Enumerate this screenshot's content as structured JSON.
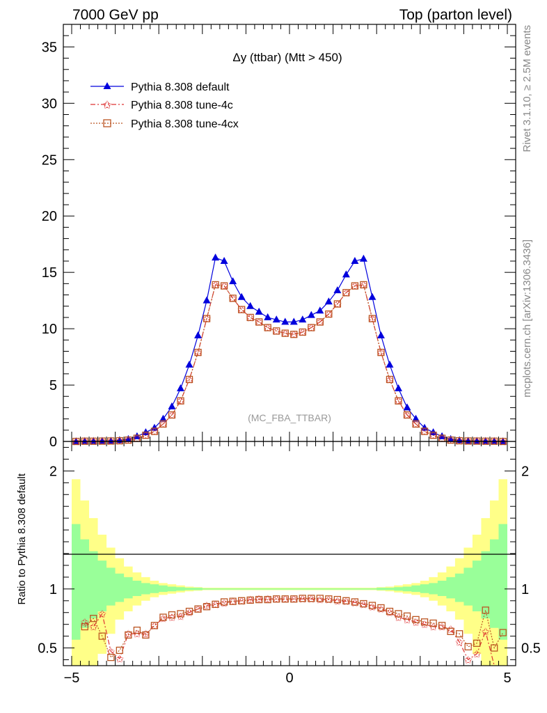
{
  "header": {
    "left": "7000 GeV pp",
    "right": "Top (parton level)"
  },
  "side_text": {
    "upper": "Rivet 3.1.10, ≥ 2.5M events",
    "lower": "mcplots.cern.ch [arXiv:1306.3436]"
  },
  "watermark": "(MC_FBA_TTBAR)",
  "chart_data": [
    {
      "type": "line",
      "title": "Δy (ttbar) (Mtt > 450)",
      "xlabel": "",
      "ylabel": "",
      "xlim": [
        -5,
        5
      ],
      "ylim": [
        0,
        37
      ],
      "xticks": [
        "−5",
        "0",
        "5"
      ],
      "yticks": [
        "0",
        "5",
        "10",
        "15",
        "20",
        "25",
        "30",
        "35"
      ],
      "x": [
        -4.9,
        -4.7,
        -4.5,
        -4.3,
        -4.1,
        -3.9,
        -3.7,
        -3.5,
        -3.3,
        -3.1,
        -2.9,
        -2.7,
        -2.5,
        -2.3,
        -2.1,
        -1.9,
        -1.7,
        -1.5,
        -1.3,
        -1.1,
        -0.9,
        -0.7,
        -0.5,
        -0.3,
        -0.1,
        0.1,
        0.3,
        0.5,
        0.7,
        0.9,
        1.1,
        1.3,
        1.5,
        1.7,
        1.9,
        2.1,
        2.3,
        2.5,
        2.7,
        2.9,
        3.1,
        3.3,
        3.5,
        3.7,
        3.9,
        4.1,
        4.3,
        4.5,
        4.7,
        4.9
      ],
      "series": [
        {
          "name": "Pythia 8.308 default",
          "color": "#0000dd",
          "marker": "triangle",
          "dash": "solid",
          "values": [
            0.0,
            0.02,
            0.03,
            0.04,
            0.05,
            0.1,
            0.2,
            0.45,
            0.8,
            1.2,
            2.0,
            3.1,
            4.7,
            6.8,
            9.4,
            12.5,
            16.3,
            16.0,
            14.2,
            12.8,
            12.0,
            11.5,
            11.0,
            10.8,
            10.6,
            10.6,
            10.8,
            11.2,
            11.6,
            12.4,
            13.4,
            14.8,
            16.0,
            16.2,
            12.8,
            9.4,
            6.8,
            4.7,
            3.0,
            2.0,
            1.2,
            0.8,
            0.45,
            0.2,
            0.1,
            0.05,
            0.04,
            0.03,
            0.02,
            0.0
          ]
        },
        {
          "name": "Pythia 8.308 tune-4c",
          "color": "#dd3333",
          "marker": "star",
          "dash": "7,3,2,3",
          "values": [
            0.0,
            0.02,
            0.02,
            0.03,
            0.04,
            0.06,
            0.12,
            0.28,
            0.55,
            0.9,
            1.55,
            2.35,
            3.6,
            5.5,
            7.9,
            10.9,
            13.9,
            13.8,
            12.7,
            11.7,
            11.0,
            10.6,
            10.1,
            9.8,
            9.6,
            9.5,
            9.7,
            10.1,
            10.6,
            11.3,
            12.2,
            13.2,
            13.8,
            13.9,
            10.9,
            7.9,
            5.5,
            3.6,
            2.35,
            1.55,
            0.9,
            0.55,
            0.28,
            0.12,
            0.06,
            0.04,
            0.03,
            0.02,
            0.02,
            0.0
          ]
        },
        {
          "name": "Pythia 8.308 tune-4cx",
          "color": "#bb5522",
          "marker": "square",
          "dash": "2,2",
          "values": [
            0.0,
            0.02,
            0.02,
            0.03,
            0.04,
            0.06,
            0.12,
            0.28,
            0.55,
            0.9,
            1.55,
            2.35,
            3.6,
            5.5,
            7.9,
            10.9,
            13.9,
            13.8,
            12.7,
            11.7,
            11.0,
            10.6,
            10.1,
            9.8,
            9.6,
            9.5,
            9.7,
            10.1,
            10.6,
            11.3,
            12.2,
            13.2,
            13.8,
            13.9,
            10.9,
            7.9,
            5.5,
            3.6,
            2.35,
            1.55,
            0.9,
            0.55,
            0.28,
            0.12,
            0.06,
            0.04,
            0.03,
            0.02,
            0.02,
            0.0
          ]
        }
      ]
    },
    {
      "type": "line",
      "title": "",
      "xlabel": "",
      "ylabel": "Ratio to Pythia 8.308 default",
      "xlim": [
        -5,
        5
      ],
      "ylim": [
        0.35,
        2.25
      ],
      "xticks": [
        "−5",
        "0",
        "5"
      ],
      "yticks": [
        "0.5",
        "1",
        "2"
      ],
      "x": [
        -4.9,
        -4.7,
        -4.5,
        -4.3,
        -4.1,
        -3.9,
        -3.7,
        -3.5,
        -3.3,
        -3.1,
        -2.9,
        -2.7,
        -2.5,
        -2.3,
        -2.1,
        -1.9,
        -1.7,
        -1.5,
        -1.3,
        -1.1,
        -0.9,
        -0.7,
        -0.5,
        -0.3,
        -0.1,
        0.1,
        0.3,
        0.5,
        0.7,
        0.9,
        1.1,
        1.3,
        1.5,
        1.7,
        1.9,
        2.1,
        2.3,
        2.5,
        2.7,
        2.9,
        3.1,
        3.3,
        3.5,
        3.7,
        3.9,
        4.1,
        4.3,
        4.5,
        4.7,
        4.9
      ],
      "bands": {
        "yellow_color": "#ffff88",
        "green_color": "#99ff99",
        "yellow_hi": [
          1.93,
          1.75,
          1.6,
          1.46,
          1.35,
          1.26,
          1.19,
          1.14,
          1.1,
          1.07,
          1.05,
          1.04,
          1.03,
          1.02,
          1.015,
          1.01,
          1.01,
          1.01,
          1.01,
          1.01,
          1.01,
          1.01,
          1.01,
          1.01,
          1.01,
          1.01,
          1.01,
          1.01,
          1.01,
          1.01,
          1.01,
          1.01,
          1.01,
          1.01,
          1.01,
          1.015,
          1.02,
          1.03,
          1.04,
          1.05,
          1.07,
          1.1,
          1.14,
          1.19,
          1.26,
          1.35,
          1.46,
          1.6,
          1.75,
          1.93
        ],
        "yellow_lo": [
          0.3,
          0.3,
          0.3,
          0.45,
          0.62,
          0.74,
          0.81,
          0.86,
          0.9,
          0.93,
          0.95,
          0.96,
          0.97,
          0.98,
          0.985,
          0.99,
          0.99,
          0.99,
          0.99,
          0.99,
          0.99,
          0.99,
          0.99,
          0.99,
          0.99,
          0.99,
          0.99,
          0.99,
          0.99,
          0.99,
          0.99,
          0.99,
          0.99,
          0.99,
          0.99,
          0.985,
          0.98,
          0.97,
          0.96,
          0.95,
          0.93,
          0.9,
          0.86,
          0.81,
          0.74,
          0.62,
          0.45,
          0.3,
          0.3,
          0.3
        ],
        "green_hi": [
          1.55,
          1.42,
          1.32,
          1.24,
          1.18,
          1.13,
          1.1,
          1.07,
          1.05,
          1.04,
          1.03,
          1.02,
          1.015,
          1.01,
          1.01,
          1.005,
          1.005,
          1.005,
          1.005,
          1.005,
          1.005,
          1.005,
          1.005,
          1.005,
          1.005,
          1.005,
          1.005,
          1.005,
          1.005,
          1.005,
          1.005,
          1.005,
          1.005,
          1.005,
          1.005,
          1.01,
          1.01,
          1.015,
          1.02,
          1.03,
          1.04,
          1.05,
          1.07,
          1.1,
          1.13,
          1.18,
          1.24,
          1.32,
          1.42,
          1.55
        ],
        "green_lo": [
          0.57,
          0.67,
          0.75,
          0.81,
          0.86,
          0.89,
          0.92,
          0.94,
          0.955,
          0.965,
          0.975,
          0.98,
          0.985,
          0.99,
          0.99,
          0.995,
          0.995,
          0.995,
          0.995,
          0.995,
          0.995,
          0.995,
          0.995,
          0.995,
          0.995,
          0.995,
          0.995,
          0.995,
          0.995,
          0.995,
          0.995,
          0.995,
          0.995,
          0.995,
          0.995,
          0.99,
          0.99,
          0.985,
          0.98,
          0.975,
          0.965,
          0.955,
          0.94,
          0.92,
          0.89,
          0.86,
          0.81,
          0.75,
          0.67,
          0.57
        ]
      },
      "series": [
        {
          "name": "Pythia 8.308 tune-4c",
          "color": "#dd3333",
          "marker": "star",
          "dash": "7,3,2,3",
          "values": [
            null,
            0.72,
            0.68,
            0.79,
            0.47,
            0.41,
            0.62,
            0.62,
            0.62,
            0.69,
            0.75,
            0.76,
            0.77,
            0.8,
            0.83,
            0.86,
            0.87,
            0.88,
            0.895,
            0.9,
            0.91,
            0.915,
            0.915,
            0.915,
            0.915,
            0.915,
            0.915,
            0.915,
            0.91,
            0.91,
            0.9,
            0.895,
            0.885,
            0.87,
            0.85,
            0.83,
            0.8,
            0.76,
            0.74,
            0.72,
            0.7,
            0.68,
            0.68,
            0.66,
            0.55,
            0.4,
            0.45,
            0.64,
            0.33,
            null
          ]
        },
        {
          "name": "Pythia 8.308 tune-4cx",
          "color": "#bb5522",
          "marker": "square",
          "dash": "2,2",
          "values": [
            null,
            0.68,
            0.75,
            0.6,
            0.42,
            0.48,
            0.61,
            0.65,
            0.61,
            0.69,
            0.76,
            0.78,
            0.79,
            0.81,
            0.83,
            0.85,
            0.87,
            0.89,
            0.895,
            0.9,
            0.905,
            0.91,
            0.91,
            0.915,
            0.915,
            0.915,
            0.92,
            0.92,
            0.92,
            0.915,
            0.91,
            0.9,
            0.89,
            0.875,
            0.86,
            0.84,
            0.81,
            0.79,
            0.77,
            0.74,
            0.72,
            0.71,
            0.69,
            0.64,
            0.62,
            0.51,
            0.54,
            0.82,
            0.5,
            0.63
          ]
        }
      ]
    }
  ]
}
